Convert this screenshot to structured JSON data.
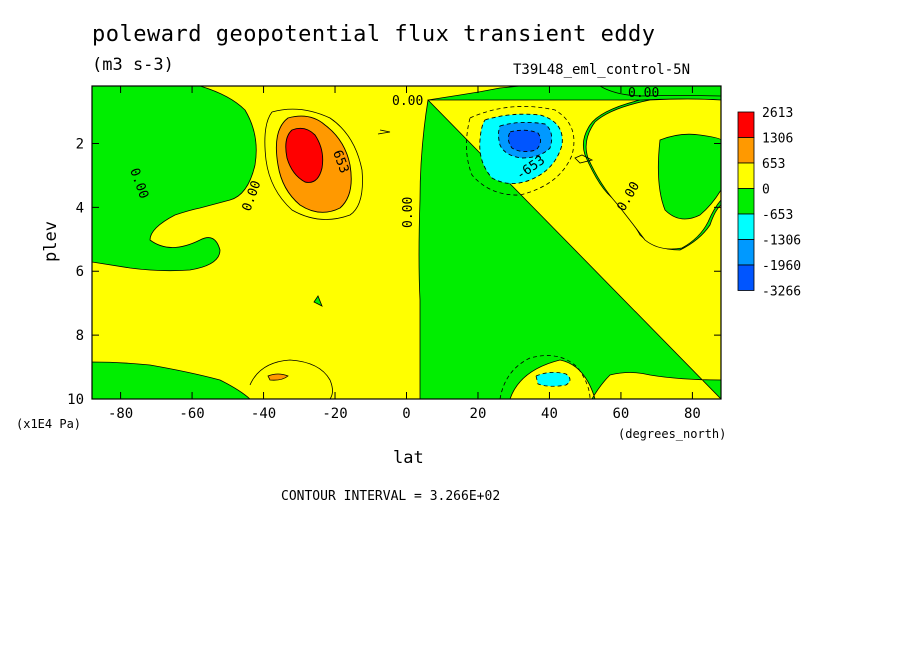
{
  "title": "poleward geopotential flux transient eddy",
  "units": "(m3 s-3)",
  "run_label": "T39L48_eml_control-5N",
  "contour_interval": "CONTOUR INTERVAL = 3.266E+02",
  "chart_data": {
    "type": "heatmap",
    "xlabel": "lat",
    "x_units": "(degrees_north)",
    "ylabel": "plev",
    "y_units": "(x1E4 Pa)",
    "xlim": [
      -88,
      88
    ],
    "ylim": [
      10,
      0.2
    ],
    "x_ticks": [
      -80,
      -60,
      -40,
      -20,
      0,
      20,
      40,
      60,
      80
    ],
    "y_ticks": [
      2,
      4,
      6,
      8,
      10
    ],
    "colorbar": {
      "labels": [
        "2613",
        "1306",
        "653",
        "0",
        "-653",
        "-1306",
        "-1960",
        "-3266"
      ],
      "colors": [
        "#ff0000",
        "#ff9900",
        "#ffff00",
        "#00ee00",
        "#00ffff",
        "#0099ff",
        "#0055ff"
      ]
    },
    "contour_labels": [
      {
        "text": "0.00",
        "x": 0,
        "y": 0.5
      },
      {
        "text": "0.00",
        "x": 65,
        "y": 0.3
      },
      {
        "text": "0.00",
        "x": -78,
        "y": 2.3
      },
      {
        "text": "0.00",
        "x": -42,
        "y": 3.5
      },
      {
        "text": "0.00",
        "x": 0,
        "y": 4.0
      },
      {
        "text": "0.00",
        "x": 62,
        "y": 3.5
      },
      {
        "text": "653",
        "x": -23,
        "y": 2.6
      },
      {
        "text": "-653",
        "x": 35,
        "y": 2.8
      }
    ],
    "features": [
      {
        "name": "positive maximum",
        "lat": -30,
        "plev": 2.2,
        "level": "2613"
      },
      {
        "name": "negative minimum",
        "lat": 33,
        "plev": 2.0,
        "level": "-1960"
      }
    ]
  }
}
